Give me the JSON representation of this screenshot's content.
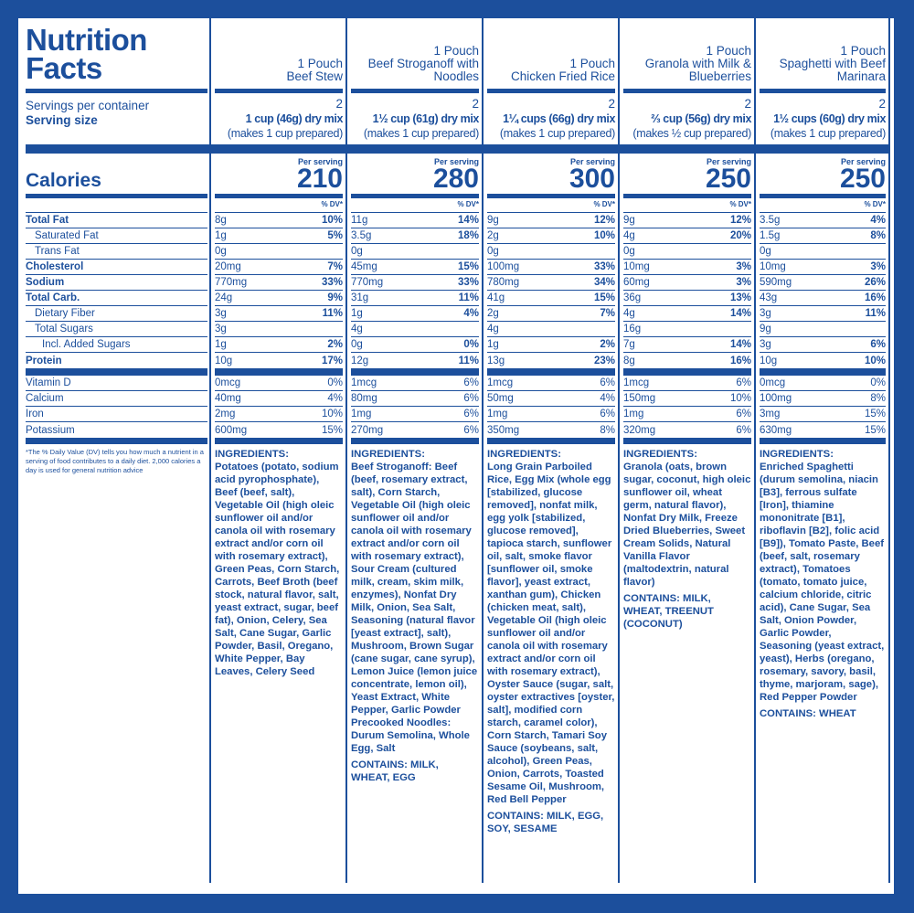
{
  "title_line1": "Nutrition",
  "title_line2": "Facts",
  "labels": {
    "servings_per_container": "Servings per container",
    "serving_size": "Serving size",
    "calories": "Calories",
    "per_serving": "Per serving",
    "dv": "% DV*",
    "nutrients": [
      "Total Fat",
      "Saturated Fat",
      "Trans Fat",
      "Cholesterol",
      "Sodium",
      "Total Carb.",
      "Dietary Fiber",
      "Total Sugars",
      "Incl. Added Sugars",
      "Protein"
    ],
    "vitamins": [
      "Vitamin D",
      "Calcium",
      "Iron",
      "Potassium"
    ],
    "footnote": "*The % Daily Value (DV) tells you how much a nutrient in a serving of food contributes to a daily diet. 2,000 calories a day is used for general nutrition advice",
    "ingredients_heading": "INGREDIENTS:"
  },
  "products": [
    {
      "pouch": "1 Pouch",
      "name": "Beef Stew",
      "servings": "2",
      "size": "1 cup (46g) dry mix",
      "prepared": "(makes 1 cup prepared)",
      "calories": "210",
      "nutrients": [
        [
          "8g",
          "10%"
        ],
        [
          "1g",
          "5%"
        ],
        [
          "0g",
          ""
        ],
        [
          "20mg",
          "7%"
        ],
        [
          "770mg",
          "33%"
        ],
        [
          "24g",
          "9%"
        ],
        [
          "3g",
          "11%"
        ],
        [
          "3g",
          ""
        ],
        [
          "1g",
          "2%"
        ],
        [
          "10g",
          "17%"
        ]
      ],
      "vitamins": [
        [
          "0mcg",
          "0%"
        ],
        [
          "40mg",
          "4%"
        ],
        [
          "2mg",
          "10%"
        ],
        [
          "600mg",
          "15%"
        ]
      ],
      "ingredients": [
        {
          "h": "",
          "t": "Potatoes (potato, sodium acid pyrophosphate), Beef (beef, salt), Vegetable Oil (high oleic sunflower oil and/or canola oil with rosemary extract and/or corn oil with rosemary extract), Green Peas, Corn Starch, Carrots, Beef Broth (beef stock, natural flavor, salt, yeast extract, sugar, beef fat), Onion, Celery, Sea Salt, Cane Sugar, Garlic Powder, Basil, Oregano, White Pepper, Bay Leaves, Celery Seed"
        }
      ],
      "contains": ""
    },
    {
      "pouch": "1 Pouch",
      "name": "Beef Stroganoff with Noodles",
      "servings": "2",
      "size": "1½ cup (61g) dry mix",
      "prepared": "(makes 1 cup prepared)",
      "calories": "280",
      "nutrients": [
        [
          "11g",
          "14%"
        ],
        [
          "3.5g",
          "18%"
        ],
        [
          "0g",
          ""
        ],
        [
          "45mg",
          "15%"
        ],
        [
          "770mg",
          "33%"
        ],
        [
          "31g",
          "11%"
        ],
        [
          "1g",
          "4%"
        ],
        [
          "4g",
          ""
        ],
        [
          "0g",
          "0%"
        ],
        [
          "12g",
          "11%"
        ]
      ],
      "vitamins": [
        [
          "1mcg",
          "6%"
        ],
        [
          "80mg",
          "6%"
        ],
        [
          "1mg",
          "6%"
        ],
        [
          "270mg",
          "6%"
        ]
      ],
      "ingredients": [
        {
          "h": "Beef Stroganoff:",
          "t": " Beef (beef, rosemary extract, salt), Corn Starch, Vegetable Oil (high oleic sunflower oil and/or canola oil with rosemary extract and/or corn oil with rosemary extract), Sour Cream (cultured milk, cream, skim milk, enzymes), Nonfat Dry Milk, Onion, Sea Salt, Seasoning (natural flavor [yeast extract], salt), Mushroom, Brown Sugar (cane sugar, cane syrup), Lemon Juice (lemon juice concentrate, lemon oil), Yeast Extract, White Pepper, Garlic Powder"
        },
        {
          "h": "Precooked Noodles:",
          "t": " Durum Semolina, Whole Egg, Salt"
        }
      ],
      "contains": "CONTAINS: MILK, WHEAT, EGG"
    },
    {
      "pouch": "1 Pouch",
      "name": "Chicken Fried Rice",
      "servings": "2",
      "size": "1¼ cups (66g) dry mix",
      "prepared": "(makes 1 cup prepared)",
      "calories": "300",
      "nutrients": [
        [
          "9g",
          "12%"
        ],
        [
          "2g",
          "10%"
        ],
        [
          "0g",
          ""
        ],
        [
          "100mg",
          "33%"
        ],
        [
          "780mg",
          "34%"
        ],
        [
          "41g",
          "15%"
        ],
        [
          "2g",
          "7%"
        ],
        [
          "4g",
          ""
        ],
        [
          "1g",
          "2%"
        ],
        [
          "13g",
          "23%"
        ]
      ],
      "vitamins": [
        [
          "1mcg",
          "6%"
        ],
        [
          "50mg",
          "4%"
        ],
        [
          "1mg",
          "6%"
        ],
        [
          "350mg",
          "8%"
        ]
      ],
      "ingredients": [
        {
          "h": "",
          "t": "Long Grain Parboiled Rice, Egg Mix (whole egg [stabilized, glucose removed], nonfat milk, egg yolk [stabilized, glucose removed], tapioca starch, sunflower oil, salt, smoke flavor [sunflower oil, smoke flavor], yeast extract, xanthan gum), Chicken (chicken meat, salt), Vegetable Oil (high oleic sunflower oil and/or canola oil with rosemary extract and/or corn oil with rosemary extract), Oyster Sauce (sugar, salt, oyster extractives [oyster, salt], modified corn starch, caramel color), Corn Starch, Tamari Soy Sauce (soybeans, salt, alcohol), Green Peas, Onion, Carrots, Toasted Sesame Oil, Mushroom, Red Bell Pepper"
        }
      ],
      "contains": "CONTAINS: MILK, EGG, SOY, SESAME"
    },
    {
      "pouch": "1 Pouch",
      "name": "Granola with Milk & Blueberries",
      "servings": "2",
      "size": "⅔ cup (56g) dry mix",
      "prepared": "(makes ½ cup prepared)",
      "calories": "250",
      "nutrients": [
        [
          "9g",
          "12%"
        ],
        [
          "4g",
          "20%"
        ],
        [
          "0g",
          ""
        ],
        [
          "10mg",
          "3%"
        ],
        [
          "60mg",
          "3%"
        ],
        [
          "36g",
          "13%"
        ],
        [
          "4g",
          "14%"
        ],
        [
          "16g",
          ""
        ],
        [
          "7g",
          "14%"
        ],
        [
          "8g",
          "16%"
        ]
      ],
      "vitamins": [
        [
          "1mcg",
          "6%"
        ],
        [
          "150mg",
          "10%"
        ],
        [
          "1mg",
          "6%"
        ],
        [
          "320mg",
          "6%"
        ]
      ],
      "ingredients": [
        {
          "h": "",
          "t": "Granola (oats, brown sugar, coconut, high oleic sunflower oil, wheat germ, natural flavor),  Nonfat Dry Milk, Freeze Dried Blueberries,  Sweet Cream Solids, Natural Vanilla Flavor (maltodextrin, natural flavor)"
        }
      ],
      "contains": "CONTAINS: MILK, WHEAT, TREENUT (COCONUT)"
    },
    {
      "pouch": "1 Pouch",
      "name": "Spaghetti with Beef Marinara",
      "servings": "2",
      "size": "1½ cups (60g) dry mix",
      "prepared": "(makes 1 cup prepared)",
      "calories": "250",
      "nutrients": [
        [
          "3.5g",
          "4%"
        ],
        [
          "1.5g",
          "8%"
        ],
        [
          "0g",
          ""
        ],
        [
          "10mg",
          "3%"
        ],
        [
          "590mg",
          "26%"
        ],
        [
          "43g",
          "16%"
        ],
        [
          "3g",
          "11%"
        ],
        [
          "9g",
          ""
        ],
        [
          "3g",
          "6%"
        ],
        [
          "10g",
          "10%"
        ]
      ],
      "vitamins": [
        [
          "0mcg",
          "0%"
        ],
        [
          "100mg",
          "8%"
        ],
        [
          "3mg",
          "15%"
        ],
        [
          "630mg",
          "15%"
        ]
      ],
      "ingredients": [
        {
          "h": "",
          "t": "Enriched Spaghetti (durum semolina, niacin [B3], ferrous sulfate [Iron], thiamine mononitrate [B1], riboflavin [B2], folic acid [B9]), Tomato Paste, Beef (beef, salt, rosemary extract), Tomatoes (tomato, tomato juice, calcium chloride, citric acid), Cane Sugar, Sea Salt, Onion Powder, Garlic Powder, Seasoning (yeast extract, yeast), Herbs (oregano, rosemary, savory, basil, thyme, marjoram, sage), Red Pepper Powder"
        }
      ],
      "contains": "CONTAINS: WHEAT"
    }
  ],
  "colors": {
    "brand_blue": "#1c4f9c",
    "background": "#ffffff"
  }
}
